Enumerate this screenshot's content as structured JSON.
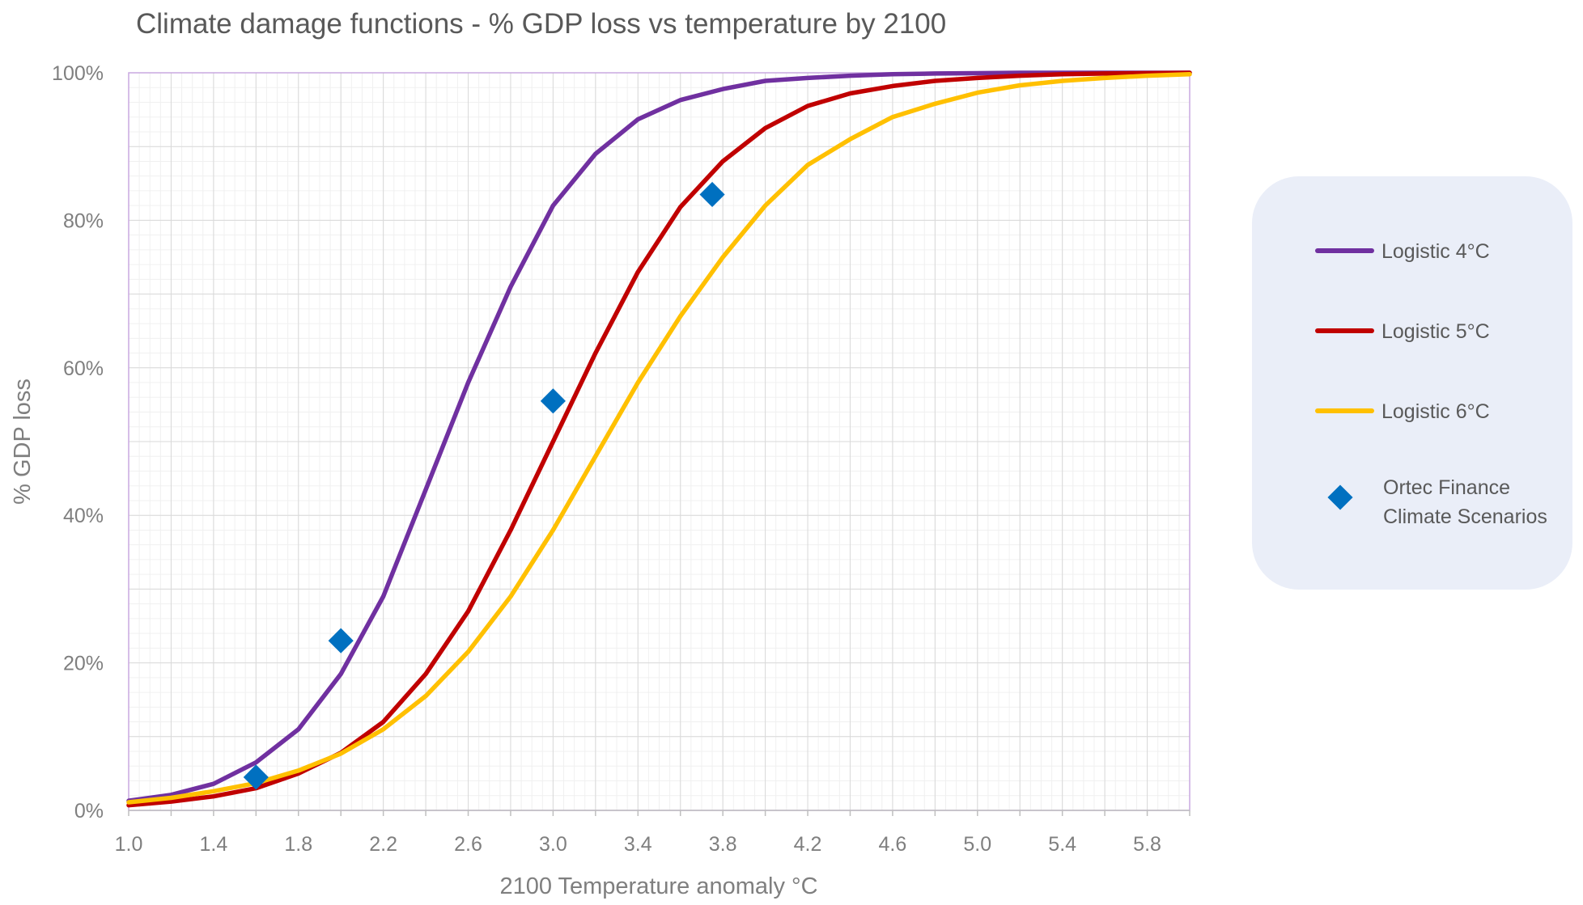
{
  "chart_data": {
    "type": "line",
    "title": "Climate damage functions - % GDP loss vs temperature by 2100",
    "xlabel": "2100 Temperature anomaly °C",
    "ylabel": "% GDP loss",
    "xlim": [
      1.0,
      6.0
    ],
    "ylim": [
      0,
      100
    ],
    "x_ticks": [
      "1.0",
      "1.4",
      "1.8",
      "2.2",
      "2.6",
      "3.0",
      "3.4",
      "3.8",
      "4.2",
      "4.6",
      "5.0",
      "5.4",
      "5.8"
    ],
    "y_ticks": [
      "0%",
      "20%",
      "40%",
      "60%",
      "80%",
      "100%"
    ],
    "grid": true,
    "legend_position": "right",
    "series": [
      {
        "name": "Logistic 4°C",
        "color": "#7030a0",
        "kind": "line",
        "x": [
          1.0,
          1.2,
          1.4,
          1.6,
          1.8,
          2.0,
          2.2,
          2.4,
          2.6,
          2.8,
          3.0,
          3.2,
          3.4,
          3.6,
          3.8,
          4.0,
          4.2,
          4.4,
          4.6,
          4.8,
          5.0,
          5.2,
          5.4,
          5.6,
          5.8,
          6.0
        ],
        "y": [
          1.3,
          2.1,
          3.6,
          6.5,
          11,
          18.5,
          29,
          43.5,
          58,
          71,
          82,
          89,
          93.7,
          96.3,
          97.8,
          98.9,
          99.3,
          99.6,
          99.8,
          99.9,
          99.95,
          100,
          100,
          100,
          100,
          100
        ]
      },
      {
        "name": "Logistic 5°C",
        "color": "#c00000",
        "kind": "line",
        "x": [
          1.0,
          1.2,
          1.4,
          1.6,
          1.8,
          2.0,
          2.2,
          2.4,
          2.6,
          2.8,
          3.0,
          3.2,
          3.4,
          3.6,
          3.8,
          4.0,
          4.2,
          4.4,
          4.6,
          4.8,
          5.0,
          5.2,
          5.4,
          5.6,
          5.8,
          6.0
        ],
        "y": [
          0.7,
          1.2,
          1.9,
          3,
          5,
          7.8,
          12,
          18.5,
          27,
          38,
          50,
          62,
          73,
          81.8,
          88,
          92.5,
          95.5,
          97.2,
          98.2,
          98.9,
          99.3,
          99.6,
          99.8,
          99.9,
          99.95,
          100
        ]
      },
      {
        "name": "Logistic 6°C",
        "color": "#ffc000",
        "kind": "line",
        "x": [
          1.0,
          1.2,
          1.4,
          1.6,
          1.8,
          2.0,
          2.2,
          2.4,
          2.6,
          2.8,
          3.0,
          3.2,
          3.4,
          3.6,
          3.8,
          4.0,
          4.2,
          4.4,
          4.6,
          4.8,
          5.0,
          5.2,
          5.4,
          5.6,
          5.8,
          6.0
        ],
        "y": [
          1.1,
          1.7,
          2.6,
          3.7,
          5.4,
          7.7,
          11,
          15.5,
          21.5,
          29,
          38,
          48,
          58,
          67,
          75,
          82,
          87.5,
          91,
          94,
          95.8,
          97.3,
          98.3,
          98.9,
          99.3,
          99.6,
          99.8
        ]
      },
      {
        "name": "Ortec Finance Climate Scenarios",
        "legend_lines": [
          "Ortec Finance",
          "Climate Scenarios"
        ],
        "color": "#0070c0",
        "kind": "scatter",
        "x": [
          1.6,
          2.0,
          3.0,
          3.75
        ],
        "y": [
          4.5,
          23,
          55.5,
          83.5
        ]
      }
    ]
  }
}
